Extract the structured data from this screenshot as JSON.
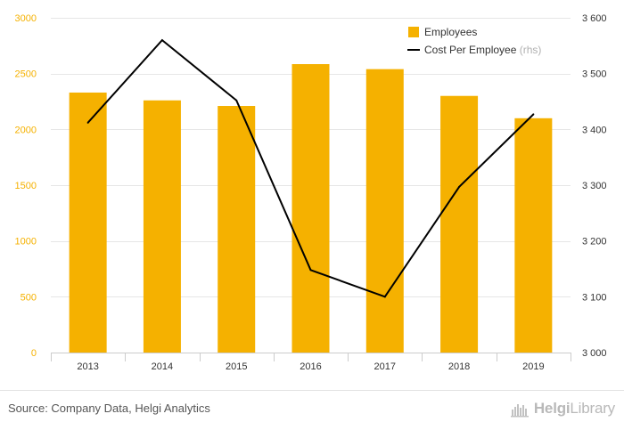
{
  "chart_data": {
    "type": "bar",
    "title": "",
    "xlabel": "",
    "ylabel": "",
    "categories": [
      "2013",
      "2014",
      "2015",
      "2016",
      "2017",
      "2018",
      "2019"
    ],
    "series": [
      {
        "name": "Employees",
        "type": "bar",
        "axis": "left",
        "color": "#f5b100",
        "values": [
          2330,
          2260,
          2210,
          2585,
          2540,
          2300,
          2100
        ]
      },
      {
        "name": "Cost Per Employee",
        "suffix": "(rhs)",
        "type": "line",
        "axis": "right",
        "color": "#000000",
        "values": [
          3412,
          3560,
          3452,
          3148,
          3100,
          3297,
          3427
        ]
      }
    ],
    "ylim_left": [
      0,
      3000
    ],
    "yticks_left": [
      0,
      500,
      1000,
      1500,
      2000,
      2500,
      3000
    ],
    "ytick_labels_left": [
      "0",
      "500",
      "1000",
      "1500",
      "2000",
      "2500",
      "3000"
    ],
    "ylim_right": [
      3000,
      3600
    ],
    "yticks_right": [
      3000,
      3100,
      3200,
      3300,
      3400,
      3500,
      3600
    ],
    "ytick_labels_right": [
      "3 000",
      "3 100",
      "3 200",
      "3 300",
      "3 400",
      "3 500",
      "3 600"
    ],
    "grid": true,
    "legend_position": "top-right"
  },
  "colors": {
    "bar": "#f5b100",
    "line": "#000000",
    "left_tick_label": "#f5b100",
    "right_tick_label": "#333333",
    "grid": "#e6e6e6"
  },
  "footer": {
    "source": "Source: Company Data, Helgi Analytics",
    "logo_icon": "helgi-library-logo-icon",
    "logo_text_a": "Helgi",
    "logo_text_b": "Library"
  }
}
